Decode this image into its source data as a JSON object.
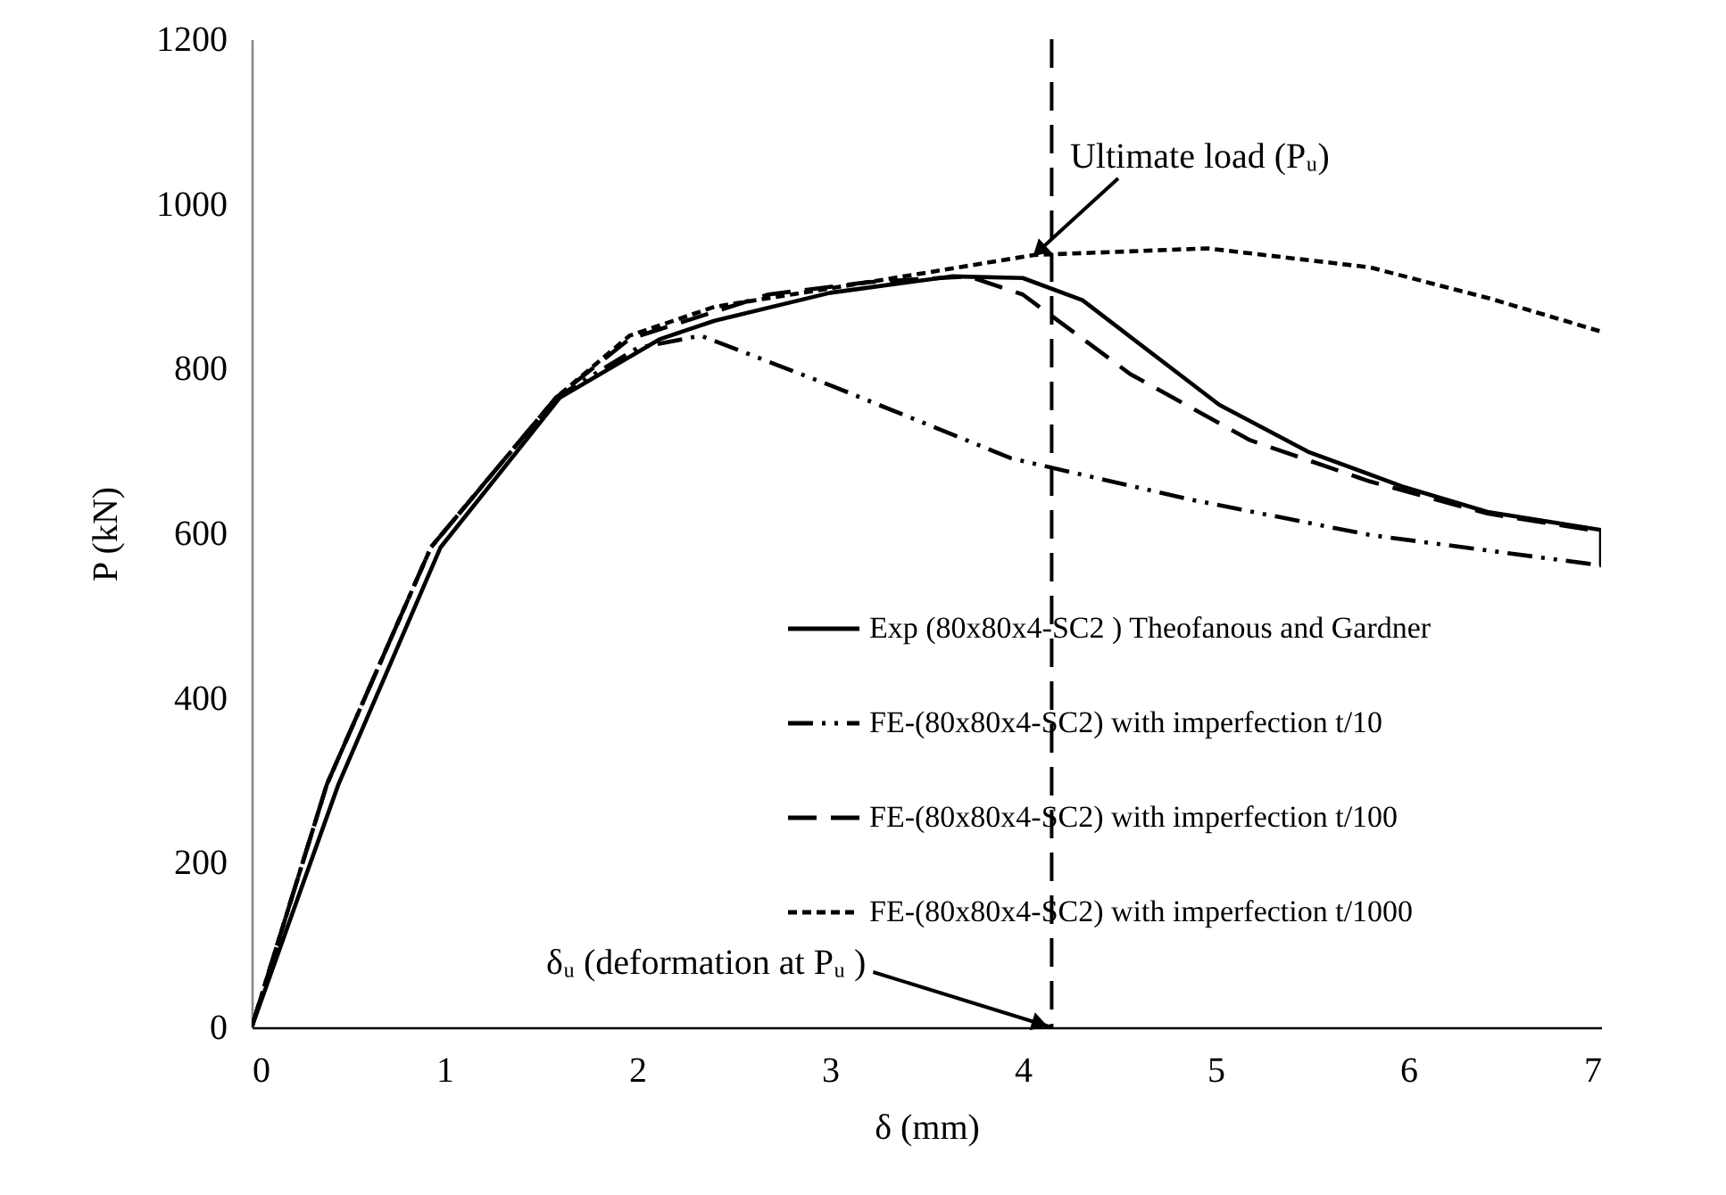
{
  "chart_data": {
    "type": "line",
    "xlabel": "δ (mm)",
    "ylabel": "P (kN)",
    "xlim": [
      0,
      7
    ],
    "xticks": [
      0,
      1,
      2,
      3,
      4,
      5,
      6,
      7
    ],
    "ylim": [
      0,
      1200
    ],
    "yticks": [
      0,
      200,
      400,
      600,
      800,
      1000,
      1200
    ],
    "grid": false,
    "legend": "right",
    "series": [
      {
        "name": "Exp (80x80x4-SC2 ) Theofanous and Gardner",
        "color": "#000000",
        "line_style": "solid",
        "x": [
          0,
          0.45,
          0.98,
          1.6,
          2.12,
          2.4,
          3,
          3.63,
          4.0,
          4.31,
          5.02,
          5.48,
          5.98,
          6.41,
          7,
          7
        ],
        "values": [
          0,
          295,
          583,
          765,
          836,
          858,
          892,
          912,
          910,
          883,
          756,
          699,
          656,
          626,
          604,
          561
        ]
      },
      {
        "name": "FE-(80x80x4-SC2) with imperfection t/10",
        "color": "#000000",
        "line_style": "dashdot",
        "x": [
          0,
          0.39,
          0.93,
          1.58,
          2.0,
          2.33,
          3.02,
          3.94,
          4.87,
          5.8,
          7
        ],
        "values": [
          0,
          295,
          583,
          765,
          825,
          840,
          778,
          691,
          641,
          598,
          561
        ]
      },
      {
        "name": "FE-(80x80x4-SC2) with imperfection t/100",
        "color": "#000000",
        "line_style": "dashed",
        "x": [
          0,
          0.39,
          0.93,
          1.58,
          1.96,
          2.68,
          3.2,
          3.72,
          4.0,
          4.56,
          5.18,
          5.8,
          6.41,
          7
        ],
        "values": [
          0,
          295,
          583,
          765,
          836,
          890,
          905,
          912,
          890,
          793,
          713,
          663,
          624,
          602
        ]
      },
      {
        "name": "FE-(80x80x4-SC2) with imperfection t/1000",
        "color": "#000000",
        "line_style": "dotted",
        "x": [
          0,
          0.39,
          0.93,
          1.58,
          1.96,
          2.4,
          3.2,
          4.06,
          4.96,
          5.8,
          6.41,
          7
        ],
        "values": [
          0,
          295,
          583,
          765,
          840,
          875,
          905,
          938,
          946,
          923,
          886,
          845
        ]
      }
    ],
    "ref_lines": [
      {
        "axis": "x",
        "value": 4.15,
        "color": "#000000",
        "line_style": "dashed"
      }
    ],
    "annotations": [
      {
        "text": "Ultimate  load (Pᵤ)",
        "x": 4.06,
        "y": 938
      },
      {
        "text": "δᵤ (deformation at Pᵤ )",
        "x": 4.15,
        "y": 0
      }
    ]
  }
}
